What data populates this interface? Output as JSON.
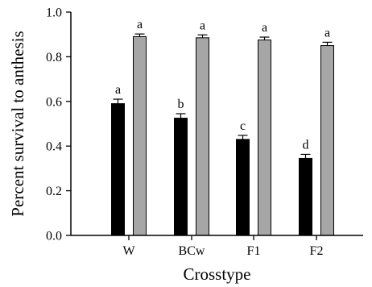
{
  "chart_data": {
    "type": "bar",
    "xlabel": "Crosstype",
    "ylabel": "Percent survival to anthesis",
    "ylim": [
      0,
      1.0
    ],
    "yticks": [
      0.0,
      0.2,
      0.4,
      0.6,
      0.8,
      1.0
    ],
    "ytick_labels": [
      "0.0",
      "0.2",
      "0.4",
      "0.6",
      "0.8",
      "1.0"
    ],
    "categories": [
      "W",
      "BCw",
      "F1",
      "F2"
    ],
    "grid": false,
    "legend": "none",
    "series": [
      {
        "color": "#000000",
        "values": [
          0.59,
          0.525,
          0.43,
          0.345
        ],
        "errors": [
          0.02,
          0.02,
          0.018,
          0.018
        ],
        "letters": [
          "a",
          "b",
          "c",
          "d"
        ]
      },
      {
        "color": "#a6a6a6",
        "values": [
          0.89,
          0.885,
          0.875,
          0.85
        ],
        "errors": [
          0.012,
          0.013,
          0.013,
          0.015
        ],
        "letters": [
          "a",
          "a",
          "a",
          "a"
        ]
      }
    ]
  }
}
